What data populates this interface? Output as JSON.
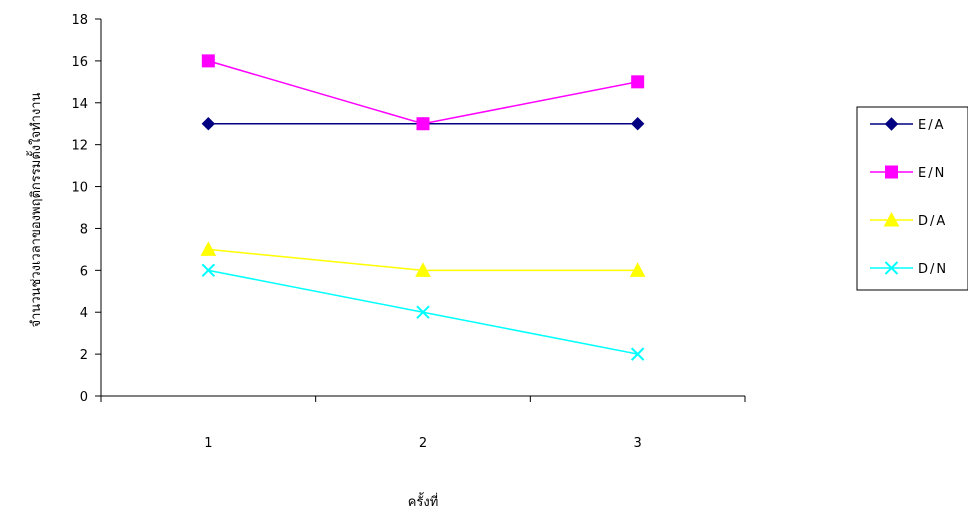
{
  "chart_data": {
    "type": "line",
    "title": "",
    "xlabel": "ครั้งที่",
    "ylabel": "จำนวนช่วงเวลาของพฤติกรรมตั้งใจทำงาน",
    "categories": [
      "1",
      "2",
      "3"
    ],
    "ylim": [
      0,
      18
    ],
    "yticks": [
      0,
      2,
      4,
      6,
      8,
      10,
      12,
      14,
      16,
      18
    ],
    "grid": false,
    "legend_position": "right",
    "series": [
      {
        "name": "E/A",
        "values": [
          13,
          13,
          13
        ],
        "color": "#000080",
        "marker": "diamond"
      },
      {
        "name": "E/N",
        "values": [
          16,
          13,
          15
        ],
        "color": "#ff00ff",
        "marker": "square"
      },
      {
        "name": "D/A",
        "values": [
          7,
          6,
          6
        ],
        "color": "#ffff00",
        "marker": "triangle"
      },
      {
        "name": "D/N",
        "values": [
          6,
          4,
          2
        ],
        "color": "#00ffff",
        "marker": "x"
      }
    ]
  }
}
